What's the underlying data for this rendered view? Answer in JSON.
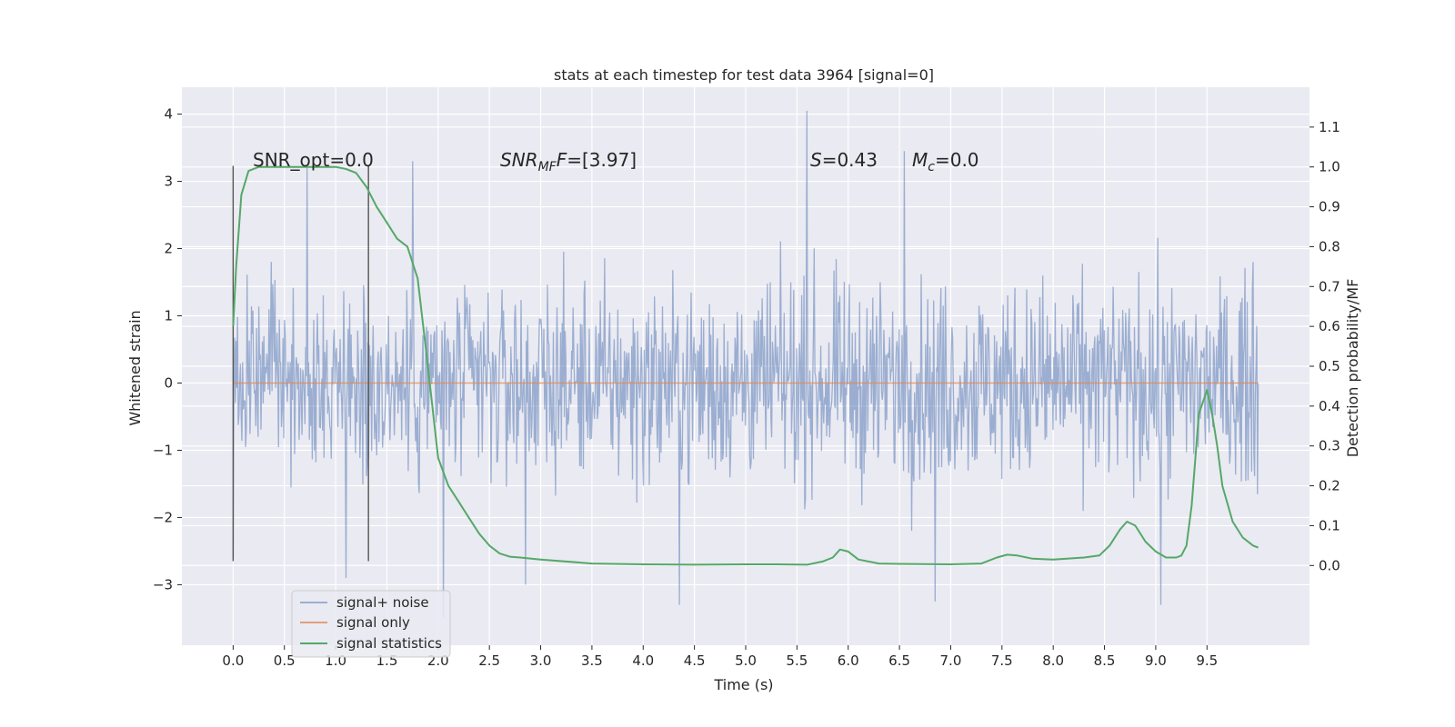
{
  "chart_data": {
    "type": "line",
    "title": "stats at each timestep for test data 3964 [signal=0]",
    "xlabel": "Time (s)",
    "ylabel_left": "Whitened strain",
    "ylabel_right": "Detection probability/MF",
    "xlim": [
      -0.5,
      10.5
    ],
    "ylim_left": [
      -3.9,
      4.4
    ],
    "ylim_right": [
      -0.2,
      1.2
    ],
    "xticks": [
      "0.0",
      "0.5",
      "1.0",
      "1.5",
      "2.0",
      "2.5",
      "3.0",
      "3.5",
      "4.0",
      "4.5",
      "5.0",
      "5.5",
      "6.0",
      "6.5",
      "7.0",
      "7.5",
      "8.0",
      "8.5",
      "9.0",
      "9.5"
    ],
    "yticks_left": [
      "4",
      "3",
      "2",
      "1",
      "0",
      "−1",
      "−2",
      "−3"
    ],
    "yticks_right": [
      "1.1",
      "1.0",
      "0.9",
      "0.8",
      "0.7",
      "0.6",
      "0.5",
      "0.4",
      "0.3",
      "0.2",
      "0.1",
      "0.0"
    ],
    "grid": true,
    "legend_position": "lower-left",
    "colors": {
      "background": "#eaeaf2",
      "grid": "#ffffff",
      "signal_noise": "#4c72b0",
      "signal_only": "#dd8452",
      "signal_statistics": "#55a868",
      "marker_lines": "#555555"
    },
    "annotations": {
      "snr_opt": "SNR_opt=0.0",
      "snr_mf_main": "SNR",
      "snr_mf_sub": "MF",
      "snr_mf_value": "=[3.97]",
      "s_main": "S",
      "s_value": "=0.43",
      "mc_main": "M",
      "mc_sub": "c",
      "mc_value": "=0.0"
    },
    "vertical_lines_x": [
      0.0,
      1.32
    ],
    "series": [
      {
        "name": "signal+ noise",
        "axis": "left",
        "description_points": {
          "x_range": [
            0.0,
            10.0
          ],
          "envelope_typical": [
            -2.0,
            2.2
          ],
          "spikes": [
            {
              "x": 0.0,
              "y": -2.6
            },
            {
              "x": 0.72,
              "y": 3.2
            },
            {
              "x": 1.1,
              "y": -2.9
            },
            {
              "x": 1.75,
              "y": 3.3
            },
            {
              "x": 2.05,
              "y": -3.5
            },
            {
              "x": 2.85,
              "y": -3.0
            },
            {
              "x": 4.35,
              "y": -3.3
            },
            {
              "x": 5.6,
              "y": 4.05
            },
            {
              "x": 6.55,
              "y": 3.45
            },
            {
              "x": 6.85,
              "y": -3.25
            },
            {
              "x": 9.05,
              "y": -3.3
            },
            {
              "x": 9.95,
              "y": 1.8
            }
          ]
        }
      },
      {
        "name": "signal only",
        "axis": "left",
        "x": [
          0.0,
          10.0
        ],
        "y": [
          0.0,
          0.0
        ]
      },
      {
        "name": "signal statistics",
        "axis": "right",
        "x": [
          0.0,
          0.03,
          0.08,
          0.15,
          0.25,
          0.4,
          0.6,
          0.8,
          1.0,
          1.1,
          1.2,
          1.3,
          1.4,
          1.5,
          1.6,
          1.7,
          1.8,
          1.9,
          2.0,
          2.1,
          2.2,
          2.3,
          2.4,
          2.5,
          2.6,
          2.7,
          2.8,
          3.0,
          3.5,
          4.0,
          4.5,
          5.0,
          5.3,
          5.6,
          5.75,
          5.85,
          5.92,
          6.0,
          6.1,
          6.3,
          6.5,
          7.0,
          7.3,
          7.45,
          7.55,
          7.65,
          7.8,
          8.0,
          8.3,
          8.45,
          8.55,
          8.65,
          8.72,
          8.8,
          8.9,
          9.0,
          9.1,
          9.2,
          9.25,
          9.3,
          9.35,
          9.42,
          9.5,
          9.55,
          9.6,
          9.65,
          9.75,
          9.85,
          9.95,
          10.0
        ],
        "y": [
          0.6,
          0.75,
          0.93,
          0.99,
          1.0,
          1.0,
          1.0,
          1.0,
          1.0,
          0.995,
          0.985,
          0.95,
          0.9,
          0.86,
          0.82,
          0.8,
          0.72,
          0.5,
          0.27,
          0.2,
          0.16,
          0.12,
          0.08,
          0.05,
          0.03,
          0.022,
          0.02,
          0.015,
          0.005,
          0.003,
          0.002,
          0.003,
          0.003,
          0.002,
          0.01,
          0.02,
          0.04,
          0.035,
          0.015,
          0.005,
          0.004,
          0.003,
          0.005,
          0.02,
          0.027,
          0.025,
          0.017,
          0.015,
          0.02,
          0.025,
          0.05,
          0.09,
          0.11,
          0.1,
          0.06,
          0.035,
          0.02,
          0.02,
          0.025,
          0.05,
          0.15,
          0.38,
          0.44,
          0.38,
          0.3,
          0.2,
          0.11,
          0.07,
          0.05,
          0.045
        ]
      }
    ]
  }
}
